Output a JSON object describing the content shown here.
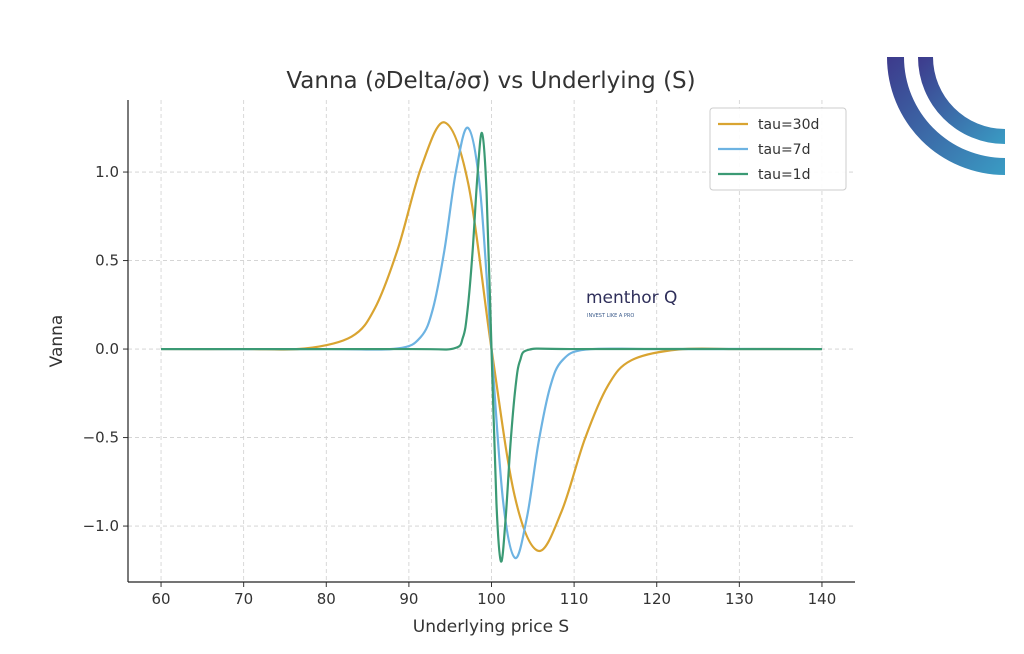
{
  "chart_data": {
    "type": "line",
    "title": "Vanna (∂Delta/∂σ) vs Underlying (S)",
    "xlabel": "Underlying price S",
    "ylabel": "Vanna",
    "xlim": [
      56,
      144
    ],
    "ylim": [
      -1.316,
      1.407
    ],
    "xticks": [
      60,
      70,
      80,
      90,
      100,
      110,
      120,
      130,
      140
    ],
    "yticks": [
      -1.0,
      -0.5,
      0.0,
      0.5,
      1.0
    ],
    "ytick_labels": [
      "−1.0",
      "−0.5",
      "0.0",
      "0.5",
      "1.0"
    ],
    "grid": true,
    "legend_placement": "top-right",
    "series": [
      {
        "name": "tau=30d",
        "color": "#d9a431",
        "x": [
          60,
          70,
          77.4,
          83.05,
          85.9,
          88.7,
          91.5,
          94.35,
          97.2,
          100,
          102.8,
          105.65,
          108.5,
          111.3,
          114.1,
          116.95,
          122.6,
          130,
          140
        ],
        "y": [
          0,
          0,
          0.003,
          0.07,
          0.232,
          0.571,
          1.028,
          1.28,
          0.931,
          0,
          -0.829,
          -1.14,
          -0.915,
          -0.508,
          -0.206,
          -0.063,
          -0.0025,
          0,
          0
        ]
      },
      {
        "name": "tau=7d",
        "color": "#6db3e2",
        "x": [
          60,
          80,
          88.6,
          91.45,
          92.9,
          94.3,
          95.7,
          97.15,
          98.6,
          100,
          101.4,
          102.85,
          104.3,
          105.7,
          107.1,
          108.55,
          111.4,
          120,
          140
        ],
        "y": [
          0,
          0,
          0.003,
          0.069,
          0.226,
          0.558,
          1.004,
          1.25,
          0.909,
          0,
          -0.858,
          -1.18,
          -0.948,
          -0.526,
          -0.214,
          -0.065,
          -0.003,
          0,
          0
        ]
      },
      {
        "name": "tau=1d",
        "color": "#3b9a74",
        "x": [
          60,
          90,
          95.4,
          96.55,
          97.1,
          97.7,
          98.3,
          98.85,
          99.4,
          100,
          100.6,
          101.15,
          101.7,
          102.3,
          102.9,
          103.45,
          104.6,
          110,
          140
        ],
        "y": [
          0,
          0,
          0.003,
          0.067,
          0.221,
          0.544,
          0.98,
          1.22,
          0.888,
          0,
          -0.873,
          -1.2,
          -0.964,
          -0.535,
          -0.217,
          -0.066,
          -0.003,
          0,
          0
        ]
      }
    ]
  },
  "watermark": {
    "brand": "menthor Q",
    "tagline": "INVEST LIKE A PRO"
  },
  "logo": {
    "colors": [
      "#3d3a8c",
      "#3a9cc4"
    ]
  }
}
